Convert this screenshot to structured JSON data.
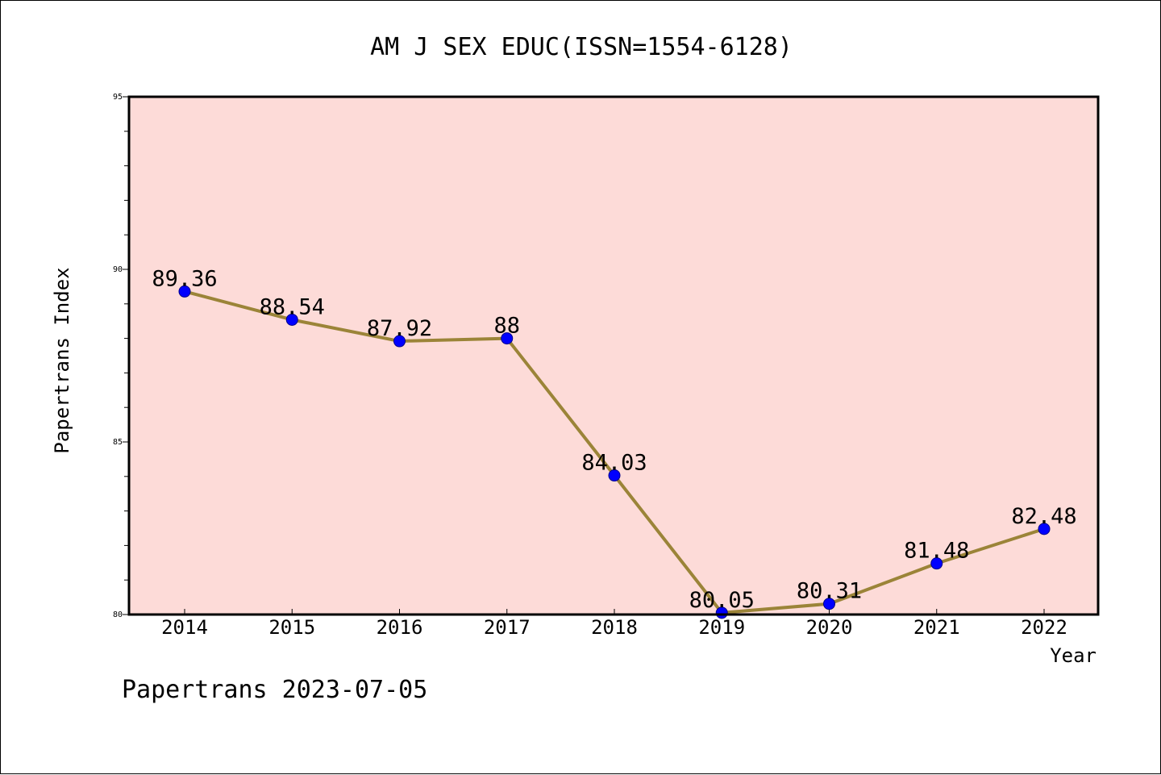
{
  "chart_data": {
    "type": "line",
    "title": "AM J SEX EDUC(ISSN=1554-6128)",
    "xlabel": "Year",
    "ylabel": "Papertrans Index",
    "categories": [
      "2014",
      "2015",
      "2016",
      "2017",
      "2018",
      "2019",
      "2020",
      "2021",
      "2022"
    ],
    "series": [
      {
        "values": [
          89.36,
          88.54,
          87.92,
          88,
          84.03,
          80.05,
          80.31,
          81.48,
          82.48
        ],
        "labels": [
          "89.36",
          "88.54",
          "87.92",
          "88",
          "84.03",
          "80.05",
          "80.31",
          "81.48",
          "82.48"
        ]
      }
    ],
    "ylim": [
      80,
      95
    ],
    "y_ticks": [
      "80",
      "85",
      "90",
      "95"
    ],
    "grid": false,
    "colors": {
      "plot_background": "#fddbd8",
      "line": "#9b8438",
      "marker": "#0000ff",
      "marker_edge": "#00008b",
      "axes": "#000000"
    },
    "footer": "Papertrans 2023-07-05"
  }
}
